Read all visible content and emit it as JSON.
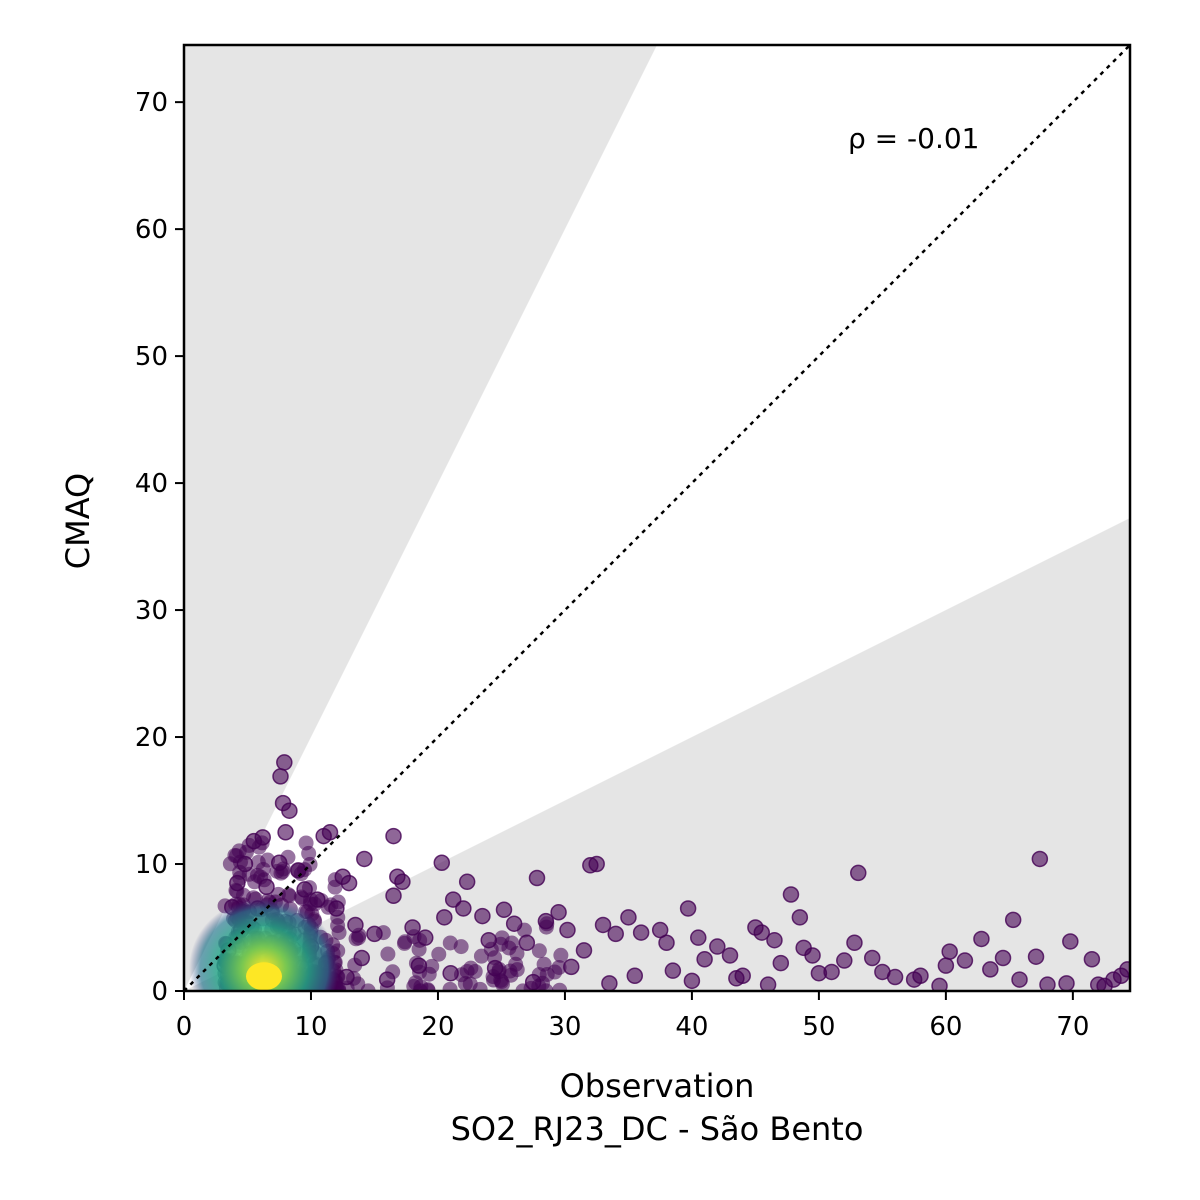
{
  "chart_data": {
    "type": "scatter",
    "title": "",
    "xlabel": "Observation",
    "xlabel2": "SO2_RJ23_DC - São Bento",
    "ylabel": "CMAQ",
    "xlim": [
      0,
      74.5
    ],
    "ylim": [
      0,
      74.5
    ],
    "xticks": [
      "0",
      "10",
      "20",
      "30",
      "40",
      "50",
      "60",
      "70"
    ],
    "yticks": [
      "0",
      "10",
      "20",
      "30",
      "40",
      "50",
      "60",
      "70"
    ],
    "annotation": "ρ = -0.01",
    "reference_line": {
      "type": "1:1",
      "style": "dotted"
    },
    "shaded_region": "outside factor-of-2 band (y > 2x and y < 0.5x)",
    "grid": false,
    "legend": "none",
    "colormap": "viridis (point density)",
    "colors": {
      "low_density": "#440154",
      "mid_density": "#21918c",
      "high_density": "#fde725",
      "shade": "#e5e5e5"
    },
    "points": [
      [
        5.2,
        2.1
      ],
      [
        6.0,
        3.5
      ],
      [
        4.5,
        4.8
      ],
      [
        7.2,
        2.8
      ],
      [
        5.8,
        6.5
      ],
      [
        6.5,
        8.2
      ],
      [
        7.5,
        10.1
      ],
      [
        8.0,
        12.5
      ],
      [
        7.8,
        14.8
      ],
      [
        7.9,
        18.0
      ],
      [
        7.6,
        16.9
      ],
      [
        8.3,
        14.2
      ],
      [
        5.5,
        11.8
      ],
      [
        6.2,
        12.1
      ],
      [
        4.8,
        10.0
      ],
      [
        4.2,
        8.5
      ],
      [
        3.8,
        6.6
      ],
      [
        9.0,
        9.5
      ],
      [
        9.5,
        8.0
      ],
      [
        10.5,
        7.2
      ],
      [
        11.0,
        12.2
      ],
      [
        11.5,
        12.5
      ],
      [
        12.5,
        9.0
      ],
      [
        13.0,
        8.5
      ],
      [
        14.2,
        10.4
      ],
      [
        12.0,
        6.5
      ],
      [
        13.5,
        5.2
      ],
      [
        15.0,
        4.5
      ],
      [
        16.5,
        12.2
      ],
      [
        16.8,
        9.0
      ],
      [
        17.2,
        8.6
      ],
      [
        16.5,
        7.5
      ],
      [
        18.0,
        5.0
      ],
      [
        19.0,
        4.2
      ],
      [
        20.3,
        10.1
      ],
      [
        20.5,
        5.8
      ],
      [
        21.2,
        7.2
      ],
      [
        22.3,
        8.6
      ],
      [
        22.0,
        6.5
      ],
      [
        23.5,
        5.9
      ],
      [
        24.0,
        4.0
      ],
      [
        25.2,
        6.4
      ],
      [
        26.0,
        5.3
      ],
      [
        27.0,
        3.8
      ],
      [
        27.8,
        8.9
      ],
      [
        28.5,
        5.5
      ],
      [
        29.5,
        6.2
      ],
      [
        30.2,
        4.8
      ],
      [
        31.5,
        3.2
      ],
      [
        32.0,
        9.9
      ],
      [
        32.5,
        10.0
      ],
      [
        33.0,
        5.2
      ],
      [
        34.0,
        4.5
      ],
      [
        35.0,
        5.8
      ],
      [
        36.0,
        4.6
      ],
      [
        37.5,
        4.8
      ],
      [
        38.0,
        3.8
      ],
      [
        39.7,
        6.5
      ],
      [
        40.5,
        4.2
      ],
      [
        41.0,
        2.5
      ],
      [
        42.0,
        3.5
      ],
      [
        43.0,
        2.8
      ],
      [
        44.0,
        1.2
      ],
      [
        45.0,
        5.0
      ],
      [
        45.5,
        4.6
      ],
      [
        46.5,
        4.0
      ],
      [
        47.0,
        2.2
      ],
      [
        47.8,
        7.6
      ],
      [
        48.5,
        5.8
      ],
      [
        48.8,
        3.4
      ],
      [
        49.5,
        2.8
      ],
      [
        50.0,
        1.4
      ],
      [
        51.0,
        1.5
      ],
      [
        52.0,
        2.4
      ],
      [
        52.8,
        3.8
      ],
      [
        53.1,
        9.3
      ],
      [
        54.2,
        2.6
      ],
      [
        55.0,
        1.5
      ],
      [
        56.0,
        1.1
      ],
      [
        57.5,
        0.9
      ],
      [
        58.0,
        1.2
      ],
      [
        59.5,
        0.4
      ],
      [
        60.0,
        2.0
      ],
      [
        60.3,
        3.1
      ],
      [
        61.5,
        2.4
      ],
      [
        62.8,
        4.1
      ],
      [
        63.5,
        1.7
      ],
      [
        64.5,
        2.6
      ],
      [
        65.3,
        5.6
      ],
      [
        65.8,
        0.9
      ],
      [
        67.1,
        2.7
      ],
      [
        67.4,
        10.4
      ],
      [
        68.0,
        0.5
      ],
      [
        69.5,
        0.6
      ],
      [
        69.8,
        3.9
      ],
      [
        71.5,
        2.5
      ],
      [
        72.0,
        0.5
      ],
      [
        72.5,
        0.4
      ],
      [
        73.2,
        0.9
      ],
      [
        73.8,
        1.2
      ],
      [
        74.3,
        1.7
      ],
      [
        3.5,
        3.2
      ],
      [
        3.2,
        2.0
      ],
      [
        10.0,
        3.5
      ],
      [
        11.2,
        2.2
      ],
      [
        14.0,
        2.6
      ],
      [
        18.5,
        2.0
      ],
      [
        24.5,
        1.8
      ],
      [
        30.5,
        1.9
      ],
      [
        35.5,
        1.2
      ],
      [
        40.0,
        0.8
      ],
      [
        46.0,
        0.5
      ],
      [
        8.5,
        0.6
      ],
      [
        12.8,
        1.1
      ],
      [
        16.0,
        0.9
      ],
      [
        21.0,
        1.4
      ],
      [
        27.5,
        0.7
      ],
      [
        33.5,
        0.6
      ],
      [
        38.5,
        1.6
      ],
      [
        43.5,
        1.0
      ]
    ],
    "density_core": {
      "center": [
        6.3,
        1.0
      ]
    }
  }
}
